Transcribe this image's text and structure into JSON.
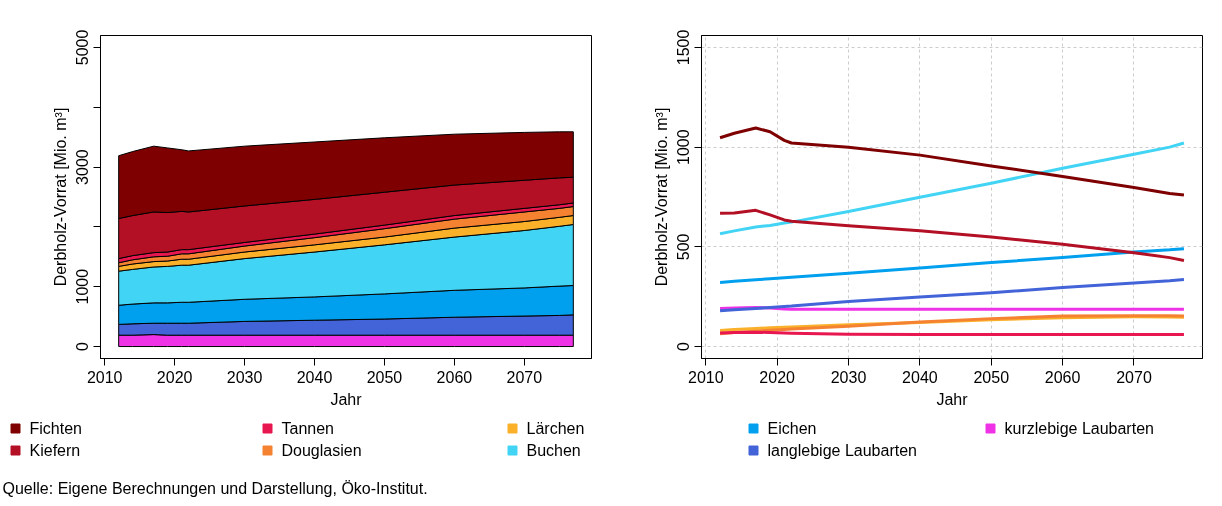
{
  "chart_data": [
    {
      "type": "area",
      "stacked": true,
      "xlabel": "Jahr",
      "ylabel": "Derbholz-Vorrat [Mio. m³]",
      "x": [
        2012,
        2014,
        2017,
        2019,
        2021,
        2022,
        2030,
        2040,
        2050,
        2060,
        2070,
        2075,
        2077
      ],
      "xlim": [
        2009.4,
        2079.6
      ],
      "xticks": [
        2010,
        2020,
        2030,
        2040,
        2050,
        2060,
        2070
      ],
      "ylim": [
        -200,
        5200
      ],
      "yticks": [
        0,
        1000,
        {
          "value": 2000,
          "label": null
        },
        3000,
        {
          "value": 4000,
          "label": null
        },
        5000
      ],
      "grid": false,
      "series": [
        {
          "color": "#f032e6",
          "values": [
            190,
            190,
            200,
            190,
            190,
            190,
            190,
            190,
            190,
            190,
            190,
            190,
            190
          ]
        },
        {
          "color": "#4363d8",
          "values": [
            180,
            190,
            190,
            200,
            200,
            200,
            230,
            250,
            270,
            300,
            320,
            330,
            340
          ]
        },
        {
          "color": "#00a0ef",
          "values": [
            320,
            330,
            340,
            340,
            350,
            350,
            370,
            390,
            420,
            450,
            470,
            490,
            490
          ]
        },
        {
          "color": "#42d4f4",
          "values": [
            570,
            580,
            600,
            610,
            620,
            620,
            680,
            750,
            820,
            890,
            960,
            1000,
            1020
          ]
        },
        {
          "color": "#fbb02a",
          "values": [
            80,
            90,
            90,
            90,
            100,
            100,
            110,
            120,
            130,
            150,
            150,
            150,
            150
          ]
        },
        {
          "color": "#f58231",
          "values": [
            60,
            70,
            80,
            80,
            90,
            90,
            100,
            120,
            140,
            150,
            160,
            150,
            150
          ]
        },
        {
          "color": "#e8174f",
          "values": [
            70,
            70,
            70,
            70,
            70,
            70,
            60,
            60,
            60,
            60,
            60,
            60,
            60
          ]
        },
        {
          "color": "#b30f25",
          "values": [
            670,
            670,
            680,
            660,
            640,
            630,
            610,
            580,
            550,
            510,
            470,
            450,
            430
          ]
        },
        {
          "color": "#7f0000",
          "values": [
            1050,
            1070,
            1100,
            1080,
            1030,
            1020,
            1000,
            960,
            910,
            850,
            800,
            770,
            760
          ]
        }
      ],
      "annotations": [
        "Quelle: Eigene Berechnungen und Darstellung, Öko-Institut."
      ]
    },
    {
      "type": "line",
      "xlabel": "Jahr",
      "ylabel": "Derbholz-Vorrat [Mio. m³]",
      "x": [
        2012,
        2014,
        2017,
        2019,
        2021,
        2022,
        2030,
        2040,
        2050,
        2060,
        2070,
        2075,
        2077
      ],
      "xlim": [
        2009.4,
        2079.6
      ],
      "xticks": [
        2010,
        2020,
        2030,
        2040,
        2050,
        2060,
        2070
      ],
      "ylim": [
        -60,
        1560
      ],
      "yticks": [
        0,
        500,
        1000,
        1500
      ],
      "grid": true,
      "legend": "bottom",
      "line_style": "solid",
      "series": [
        {
          "name": "kurzlebige Laubarten",
          "color": "#f032e6",
          "values": [
            191,
            193,
            196,
            193,
            188,
            187,
            187,
            187,
            187,
            187,
            187,
            187,
            187
          ]
        },
        {
          "name": "langlebige Laubarten",
          "color": "#4363d8",
          "values": [
            179,
            185,
            191,
            196,
            201,
            203,
            226,
            249,
            270,
            296,
            319,
            330,
            336
          ]
        },
        {
          "name": "Eichen",
          "color": "#00a0ef",
          "values": [
            321,
            327,
            335,
            340,
            345,
            347,
            368,
            394,
            421,
            447,
            474,
            485,
            491
          ]
        },
        {
          "name": "Buchen",
          "color": "#42d4f4",
          "values": [
            566,
            580,
            600,
            607,
            620,
            624,
            677,
            749,
            819,
            894,
            964,
            1000,
            1021
          ]
        },
        {
          "name": "Lärchen",
          "color": "#fbb02a",
          "values": [
            81,
            86,
            91,
            94,
            97,
            98,
            109,
            121,
            134,
            145,
            149,
            148,
            147
          ]
        },
        {
          "name": "Douglasien",
          "color": "#f58231",
          "values": [
            64,
            70,
            77,
            82,
            86,
            88,
            102,
            123,
            140,
            153,
            155,
            154,
            153
          ]
        },
        {
          "name": "Tannen",
          "color": "#e8174f",
          "values": [
            68,
            70,
            72,
            70,
            68,
            67,
            62,
            60,
            60,
            60,
            60,
            60,
            60
          ]
        },
        {
          "name": "Kiefern",
          "color": "#b30f25",
          "values": [
            668,
            670,
            683,
            660,
            635,
            628,
            606,
            581,
            549,
            513,
            470,
            446,
            432
          ]
        },
        {
          "name": "Fichten",
          "color": "#7f0000",
          "values": [
            1047,
            1070,
            1096,
            1077,
            1034,
            1021,
            1000,
            960,
            906,
            853,
            798,
            768,
            760
          ]
        }
      ]
    }
  ]
}
